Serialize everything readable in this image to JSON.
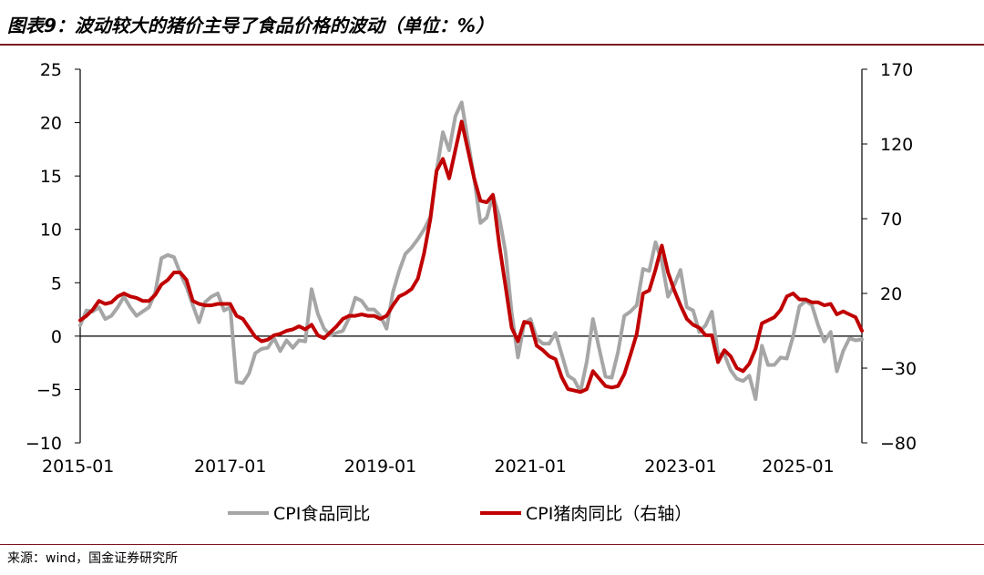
{
  "title": "图表9：波动较大的猪价主导了食品价格的波动（单位：%）",
  "source": "来源：wind，国金证券研究所",
  "chart_data": {
    "type": "line",
    "title": "图表9：波动较大的猪价主导了食品价格的波动（单位：%）",
    "x_tick_labels": [
      "2015-01",
      "2017-01",
      "2019-01",
      "2021-01",
      "2023-01",
      "2025-01"
    ],
    "x_range": [
      "2015-01",
      "2025-06"
    ],
    "y_left": {
      "range": [
        -10,
        25
      ],
      "ticks": [
        "25",
        "20",
        "15",
        "10",
        "5",
        "0",
        "−5",
        "−10"
      ]
    },
    "y_right": {
      "range": [
        -80,
        170
      ],
      "ticks": [
        "170",
        "120",
        "70",
        "20",
        "−30",
        "−80"
      ]
    },
    "legend_position": "bottom",
    "grid": false,
    "colors": {
      "food": "#a6a6a6",
      "pork": "#c00000"
    },
    "series": [
      {
        "name": "CPI食品同比",
        "axis": "left",
        "points": [
          [
            "2015-01",
            1.0
          ],
          [
            "2015-02",
            2.4
          ],
          [
            "2015-03",
            2.3
          ],
          [
            "2015-04",
            2.7
          ],
          [
            "2015-05",
            1.6
          ],
          [
            "2015-06",
            1.9
          ],
          [
            "2015-07",
            2.7
          ],
          [
            "2015-08",
            3.7
          ],
          [
            "2015-09",
            2.7
          ],
          [
            "2015-10",
            1.9
          ],
          [
            "2015-11",
            2.3
          ],
          [
            "2015-12",
            2.7
          ],
          [
            "2016-01",
            4.1
          ],
          [
            "2016-02",
            7.3
          ],
          [
            "2016-03",
            7.6
          ],
          [
            "2016-04",
            7.4
          ],
          [
            "2016-05",
            5.9
          ],
          [
            "2016-06",
            4.6
          ],
          [
            "2016-07",
            2.9
          ],
          [
            "2016-08",
            1.3
          ],
          [
            "2016-09",
            3.2
          ],
          [
            "2016-10",
            3.7
          ],
          [
            "2016-11",
            4.0
          ],
          [
            "2016-12",
            2.4
          ],
          [
            "2017-01",
            2.7
          ],
          [
            "2017-02",
            -4.3
          ],
          [
            "2017-03",
            -4.4
          ],
          [
            "2017-04",
            -3.5
          ],
          [
            "2017-05",
            -1.6
          ],
          [
            "2017-06",
            -1.2
          ],
          [
            "2017-07",
            -1.1
          ],
          [
            "2017-08",
            -0.2
          ],
          [
            "2017-09",
            -1.4
          ],
          [
            "2017-10",
            -0.4
          ],
          [
            "2017-11",
            -1.1
          ],
          [
            "2017-12",
            -0.4
          ],
          [
            "2018-01",
            -0.5
          ],
          [
            "2018-02",
            4.4
          ],
          [
            "2018-03",
            2.1
          ],
          [
            "2018-04",
            0.7
          ],
          [
            "2018-05",
            0.1
          ],
          [
            "2018-06",
            0.3
          ],
          [
            "2018-07",
            0.5
          ],
          [
            "2018-08",
            1.7
          ],
          [
            "2018-09",
            3.6
          ],
          [
            "2018-10",
            3.3
          ],
          [
            "2018-11",
            2.5
          ],
          [
            "2018-12",
            2.5
          ],
          [
            "2019-01",
            1.9
          ],
          [
            "2019-02",
            0.7
          ],
          [
            "2019-03",
            4.1
          ],
          [
            "2019-04",
            6.1
          ],
          [
            "2019-05",
            7.7
          ],
          [
            "2019-06",
            8.3
          ],
          [
            "2019-07",
            9.1
          ],
          [
            "2019-08",
            10.0
          ],
          [
            "2019-09",
            11.2
          ],
          [
            "2019-10",
            15.5
          ],
          [
            "2019-11",
            19.1
          ],
          [
            "2019-12",
            17.4
          ],
          [
            "2020-01",
            20.6
          ],
          [
            "2020-02",
            21.9
          ],
          [
            "2020-03",
            18.3
          ],
          [
            "2020-04",
            14.8
          ],
          [
            "2020-05",
            10.6
          ],
          [
            "2020-06",
            11.1
          ],
          [
            "2020-07",
            13.2
          ],
          [
            "2020-08",
            11.2
          ],
          [
            "2020-09",
            7.9
          ],
          [
            "2020-10",
            2.2
          ],
          [
            "2020-11",
            -2.0
          ],
          [
            "2020-12",
            1.2
          ],
          [
            "2021-01",
            1.6
          ],
          [
            "2021-02",
            -0.2
          ],
          [
            "2021-03",
            -0.7
          ],
          [
            "2021-04",
            -0.7
          ],
          [
            "2021-05",
            0.3
          ],
          [
            "2021-06",
            -1.7
          ],
          [
            "2021-07",
            -3.7
          ],
          [
            "2021-08",
            -4.1
          ],
          [
            "2021-09",
            -5.2
          ],
          [
            "2021-10",
            -2.4
          ],
          [
            "2021-11",
            1.6
          ],
          [
            "2021-12",
            -1.2
          ],
          [
            "2022-01",
            -3.8
          ],
          [
            "2022-02",
            -3.9
          ],
          [
            "2022-03",
            -1.5
          ],
          [
            "2022-04",
            1.9
          ],
          [
            "2022-05",
            2.3
          ],
          [
            "2022-06",
            2.9
          ],
          [
            "2022-07",
            6.3
          ],
          [
            "2022-08",
            6.1
          ],
          [
            "2022-09",
            8.8
          ],
          [
            "2022-10",
            7.0
          ],
          [
            "2022-11",
            3.7
          ],
          [
            "2022-12",
            4.8
          ],
          [
            "2023-01",
            6.2
          ],
          [
            "2023-02",
            2.7
          ],
          [
            "2023-03",
            2.4
          ],
          [
            "2023-04",
            0.4
          ],
          [
            "2023-05",
            1.0
          ],
          [
            "2023-06",
            2.3
          ],
          [
            "2023-07",
            -1.7
          ],
          [
            "2023-08",
            -1.7
          ],
          [
            "2023-09",
            -3.2
          ],
          [
            "2023-10",
            -4.0
          ],
          [
            "2023-11",
            -4.2
          ],
          [
            "2023-12",
            -3.7
          ],
          [
            "2024-01",
            -5.9
          ],
          [
            "2024-02",
            -0.9
          ],
          [
            "2024-03",
            -2.7
          ],
          [
            "2024-04",
            -2.7
          ],
          [
            "2024-05",
            -2.0
          ],
          [
            "2024-06",
            -2.1
          ],
          [
            "2024-07",
            0.0
          ],
          [
            "2024-08",
            2.8
          ],
          [
            "2024-09",
            3.3
          ],
          [
            "2024-10",
            2.9
          ],
          [
            "2024-11",
            1.0
          ],
          [
            "2024-12",
            -0.5
          ],
          [
            "2025-01",
            0.4
          ],
          [
            "2025-02",
            -3.3
          ],
          [
            "2025-03",
            -1.4
          ],
          [
            "2025-04",
            -0.2
          ],
          [
            "2025-05",
            -0.4
          ],
          [
            "2025-06",
            -0.3
          ]
        ]
      },
      {
        "name": "CPI猪肉同比（右轴）",
        "axis": "right",
        "points": [
          [
            "2015-01",
            2
          ],
          [
            "2015-02",
            5
          ],
          [
            "2015-03",
            9
          ],
          [
            "2015-04",
            15
          ],
          [
            "2015-05",
            13
          ],
          [
            "2015-06",
            14
          ],
          [
            "2015-07",
            18
          ],
          [
            "2015-08",
            20
          ],
          [
            "2015-09",
            18
          ],
          [
            "2015-10",
            17
          ],
          [
            "2015-11",
            15
          ],
          [
            "2015-12",
            15
          ],
          [
            "2016-01",
            19
          ],
          [
            "2016-02",
            26
          ],
          [
            "2016-03",
            29
          ],
          [
            "2016-04",
            34
          ],
          [
            "2016-05",
            34
          ],
          [
            "2016-06",
            29
          ],
          [
            "2016-07",
            15
          ],
          [
            "2016-08",
            13
          ],
          [
            "2016-09",
            12
          ],
          [
            "2016-10",
            12
          ],
          [
            "2016-11",
            13
          ],
          [
            "2016-12",
            13
          ],
          [
            "2017-01",
            13
          ],
          [
            "2017-02",
            5
          ],
          [
            "2017-03",
            3
          ],
          [
            "2017-04",
            -3
          ],
          [
            "2017-05",
            -9
          ],
          [
            "2017-06",
            -12
          ],
          [
            "2017-07",
            -11
          ],
          [
            "2017-08",
            -8
          ],
          [
            "2017-09",
            -7
          ],
          [
            "2017-10",
            -5
          ],
          [
            "2017-11",
            -4
          ],
          [
            "2017-12",
            -2
          ],
          [
            "2018-01",
            -4
          ],
          [
            "2018-02",
            -1
          ],
          [
            "2018-03",
            -8
          ],
          [
            "2018-04",
            -10
          ],
          [
            "2018-05",
            -6
          ],
          [
            "2018-06",
            -2
          ],
          [
            "2018-07",
            3
          ],
          [
            "2018-08",
            5
          ],
          [
            "2018-09",
            5
          ],
          [
            "2018-10",
            6
          ],
          [
            "2018-11",
            5
          ],
          [
            "2018-12",
            5
          ],
          [
            "2019-01",
            3
          ],
          [
            "2019-02",
            5
          ],
          [
            "2019-03",
            12
          ],
          [
            "2019-04",
            18
          ],
          [
            "2019-05",
            20
          ],
          [
            "2019-06",
            23
          ],
          [
            "2019-07",
            30
          ],
          [
            "2019-08",
            47
          ],
          [
            "2019-09",
            70
          ],
          [
            "2019-10",
            102
          ],
          [
            "2019-11",
            110
          ],
          [
            "2019-12",
            97
          ],
          [
            "2020-01",
            116
          ],
          [
            "2020-02",
            135
          ],
          [
            "2020-03",
            116
          ],
          [
            "2020-04",
            97
          ],
          [
            "2020-05",
            82
          ],
          [
            "2020-06",
            81
          ],
          [
            "2020-07",
            86
          ],
          [
            "2020-08",
            53
          ],
          [
            "2020-09",
            25
          ],
          [
            "2020-10",
            -3
          ],
          [
            "2020-11",
            -12
          ],
          [
            "2020-12",
            1
          ],
          [
            "2021-01",
            0
          ],
          [
            "2021-02",
            -15
          ],
          [
            "2021-03",
            -18
          ],
          [
            "2021-04",
            -22
          ],
          [
            "2021-05",
            -24
          ],
          [
            "2021-06",
            -36
          ],
          [
            "2021-07",
            -44
          ],
          [
            "2021-08",
            -45
          ],
          [
            "2021-09",
            -46
          ],
          [
            "2021-10",
            -44
          ],
          [
            "2021-11",
            -32
          ],
          [
            "2021-12",
            -37
          ],
          [
            "2022-01",
            -42
          ],
          [
            "2022-02",
            -43
          ],
          [
            "2022-03",
            -42
          ],
          [
            "2022-04",
            -34
          ],
          [
            "2022-05",
            -21
          ],
          [
            "2022-06",
            -7
          ],
          [
            "2022-07",
            20
          ],
          [
            "2022-08",
            22
          ],
          [
            "2022-09",
            36
          ],
          [
            "2022-10",
            52
          ],
          [
            "2022-11",
            34
          ],
          [
            "2022-12",
            22
          ],
          [
            "2023-01",
            12
          ],
          [
            "2023-02",
            3
          ],
          [
            "2023-03",
            -1
          ],
          [
            "2023-04",
            -3
          ],
          [
            "2023-05",
            -8
          ],
          [
            "2023-06",
            -8
          ],
          [
            "2023-07",
            -26
          ],
          [
            "2023-08",
            -18
          ],
          [
            "2023-09",
            -22
          ],
          [
            "2023-10",
            -30
          ],
          [
            "2023-11",
            -32
          ],
          [
            "2023-12",
            -27
          ],
          [
            "2024-01",
            -17
          ],
          [
            "2024-02",
            0
          ],
          [
            "2024-03",
            2
          ],
          [
            "2024-04",
            4
          ],
          [
            "2024-05",
            9
          ],
          [
            "2024-06",
            18
          ],
          [
            "2024-07",
            20
          ],
          [
            "2024-08",
            16
          ],
          [
            "2024-09",
            16
          ],
          [
            "2024-10",
            14
          ],
          [
            "2024-11",
            14
          ],
          [
            "2024-12",
            12
          ],
          [
            "2025-01",
            13
          ],
          [
            "2025-02",
            6
          ],
          [
            "2025-03",
            8
          ],
          [
            "2025-04",
            6
          ],
          [
            "2025-05",
            4
          ],
          [
            "2025-06",
            -5
          ]
        ]
      }
    ]
  }
}
